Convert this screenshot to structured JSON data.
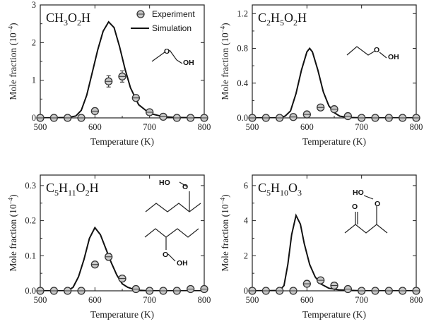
{
  "figure": {
    "xlabel": "Temperature (K)",
    "ylabel": "Mole fraction (10",
    "ylabel_sup": "−4",
    "ylabel_end": ")",
    "legend": {
      "experiment": "Experiment",
      "simulation": "Simulation"
    },
    "atoms": {
      "oh": "OH",
      "ho": "HO",
      "o": "O"
    }
  },
  "chart_data": [
    {
      "type": "line",
      "title_parts": [
        {
          "t": "CH"
        },
        {
          "t": "3",
          "sub": true
        },
        {
          "t": "O"
        },
        {
          "t": "2",
          "sub": true
        },
        {
          "t": "H"
        }
      ],
      "xlim": [
        500,
        800
      ],
      "ylim": [
        0,
        3
      ],
      "xticks": [
        500,
        600,
        700,
        800
      ],
      "xticks_labeled": [
        500,
        600,
        700,
        800
      ],
      "yticks": [
        0,
        1,
        2,
        3
      ],
      "ytick_labels": [
        "0",
        "1",
        "2",
        "3"
      ],
      "legend": true,
      "series": [
        {
          "name": "Experiment",
          "kind": "scatter",
          "x": [
            500,
            525,
            550,
            575,
            600,
            625,
            650,
            675,
            700,
            725,
            750,
            775,
            800
          ],
          "y": [
            0,
            0,
            0,
            0,
            0.18,
            0.97,
            1.1,
            0.53,
            0.15,
            0.03,
            0,
            0,
            0
          ],
          "err": [
            0,
            0,
            0,
            0,
            0.05,
            0.15,
            0.15,
            0.07,
            0.04,
            0,
            0,
            0,
            0
          ]
        },
        {
          "name": "Simulation",
          "kind": "line",
          "x": [
            500,
            550,
            565,
            575,
            585,
            595,
            605,
            615,
            625,
            635,
            645,
            655,
            665,
            680,
            700,
            725,
            750,
            800
          ],
          "y": [
            0,
            0.01,
            0.05,
            0.2,
            0.6,
            1.2,
            1.8,
            2.3,
            2.55,
            2.4,
            1.9,
            1.3,
            0.8,
            0.35,
            0.12,
            0.03,
            0.01,
            0
          ]
        }
      ]
    },
    {
      "type": "line",
      "title_parts": [
        {
          "t": "C"
        },
        {
          "t": "2",
          "sub": true
        },
        {
          "t": "H"
        },
        {
          "t": "5",
          "sub": true
        },
        {
          "t": "O"
        },
        {
          "t": "2",
          "sub": true
        },
        {
          "t": "H"
        }
      ],
      "xlim": [
        500,
        800
      ],
      "ylim": [
        0,
        1.3
      ],
      "xticks": [
        500,
        600,
        700,
        800
      ],
      "xticks_labeled": [
        500,
        600,
        700,
        800
      ],
      "yticks": [
        0,
        0.4,
        0.8,
        1.2
      ],
      "ytick_labels": [
        "0.0",
        "0.4",
        "0.8",
        "1.2"
      ],
      "legend": false,
      "series": [
        {
          "name": "Experiment",
          "kind": "scatter",
          "x": [
            500,
            525,
            550,
            575,
            600,
            625,
            650,
            675,
            700,
            725,
            750,
            775,
            800
          ],
          "y": [
            0,
            0,
            0,
            0.01,
            0.04,
            0.12,
            0.1,
            0.02,
            0,
            0,
            0,
            0,
            0
          ],
          "err": [
            0,
            0,
            0,
            0,
            0.02,
            0.03,
            0.02,
            0,
            0,
            0,
            0,
            0,
            0
          ]
        },
        {
          "name": "Simulation",
          "kind": "line",
          "x": [
            500,
            550,
            560,
            570,
            580,
            590,
            600,
            605,
            610,
            620,
            630,
            640,
            650,
            660,
            675,
            700,
            800
          ],
          "y": [
            0,
            0,
            0.02,
            0.08,
            0.28,
            0.55,
            0.76,
            0.8,
            0.76,
            0.55,
            0.3,
            0.14,
            0.06,
            0.02,
            0.005,
            0,
            0
          ]
        }
      ]
    },
    {
      "type": "line",
      "title_parts": [
        {
          "t": "C"
        },
        {
          "t": "5",
          "sub": true
        },
        {
          "t": "H"
        },
        {
          "t": "11",
          "sub": true
        },
        {
          "t": "O"
        },
        {
          "t": "2",
          "sub": true
        },
        {
          "t": "H"
        }
      ],
      "xlim": [
        500,
        800
      ],
      "ylim": [
        0,
        0.33
      ],
      "xticks": [
        500,
        600,
        700,
        800
      ],
      "xticks_labeled": [
        500,
        600,
        700,
        800
      ],
      "yticks": [
        0,
        0.1,
        0.2,
        0.3
      ],
      "ytick_labels": [
        "0.0",
        "0.1",
        "0.2",
        "0.3"
      ],
      "legend": false,
      "series": [
        {
          "name": "Experiment",
          "kind": "scatter",
          "x": [
            500,
            525,
            550,
            575,
            600,
            625,
            650,
            675,
            700,
            725,
            750,
            775,
            800
          ],
          "y": [
            0,
            0,
            0,
            0,
            0.075,
            0.097,
            0.035,
            0.005,
            0,
            0,
            0,
            0.005,
            0.005
          ],
          "err": [
            0,
            0,
            0,
            0,
            0.008,
            0.01,
            0.006,
            0,
            0,
            0,
            0,
            0,
            0
          ]
        },
        {
          "name": "Simulation",
          "kind": "line",
          "x": [
            500,
            550,
            560,
            570,
            580,
            590,
            600,
            610,
            620,
            630,
            640,
            650,
            660,
            675,
            700,
            800
          ],
          "y": [
            0,
            0,
            0.01,
            0.04,
            0.09,
            0.15,
            0.18,
            0.16,
            0.12,
            0.08,
            0.045,
            0.02,
            0.01,
            0.002,
            0,
            0
          ]
        }
      ]
    },
    {
      "type": "line",
      "title_parts": [
        {
          "t": "C"
        },
        {
          "t": "5",
          "sub": true
        },
        {
          "t": "H"
        },
        {
          "t": "10",
          "sub": true
        },
        {
          "t": "O"
        },
        {
          "t": "3",
          "sub": true
        }
      ],
      "xlim": [
        500,
        800
      ],
      "ylim": [
        0,
        6.6
      ],
      "xticks": [
        500,
        600,
        700,
        800
      ],
      "xticks_labeled": [
        500,
        600,
        700,
        800
      ],
      "yticks": [
        0,
        2,
        4,
        6
      ],
      "ytick_labels": [
        "0",
        "2",
        "4",
        "6"
      ],
      "legend": false,
      "series": [
        {
          "name": "Experiment",
          "kind": "scatter",
          "x": [
            500,
            525,
            550,
            575,
            600,
            625,
            650,
            675,
            700,
            725,
            750,
            775,
            800
          ],
          "y": [
            0,
            0,
            0,
            0,
            0.4,
            0.6,
            0.3,
            0.1,
            0,
            0,
            0,
            0,
            0
          ],
          "err": [
            0,
            0,
            0,
            0,
            0.1,
            0.1,
            0.05,
            0,
            0,
            0,
            0,
            0,
            0
          ]
        },
        {
          "name": "Simulation",
          "kind": "line",
          "x": [
            500,
            550,
            558,
            565,
            572,
            580,
            588,
            595,
            605,
            615,
            625,
            640,
            660,
            700,
            800
          ],
          "y": [
            0,
            0.02,
            0.3,
            1.5,
            3.2,
            4.3,
            3.8,
            2.7,
            1.5,
            0.8,
            0.4,
            0.15,
            0.05,
            0,
            0
          ]
        }
      ]
    }
  ]
}
